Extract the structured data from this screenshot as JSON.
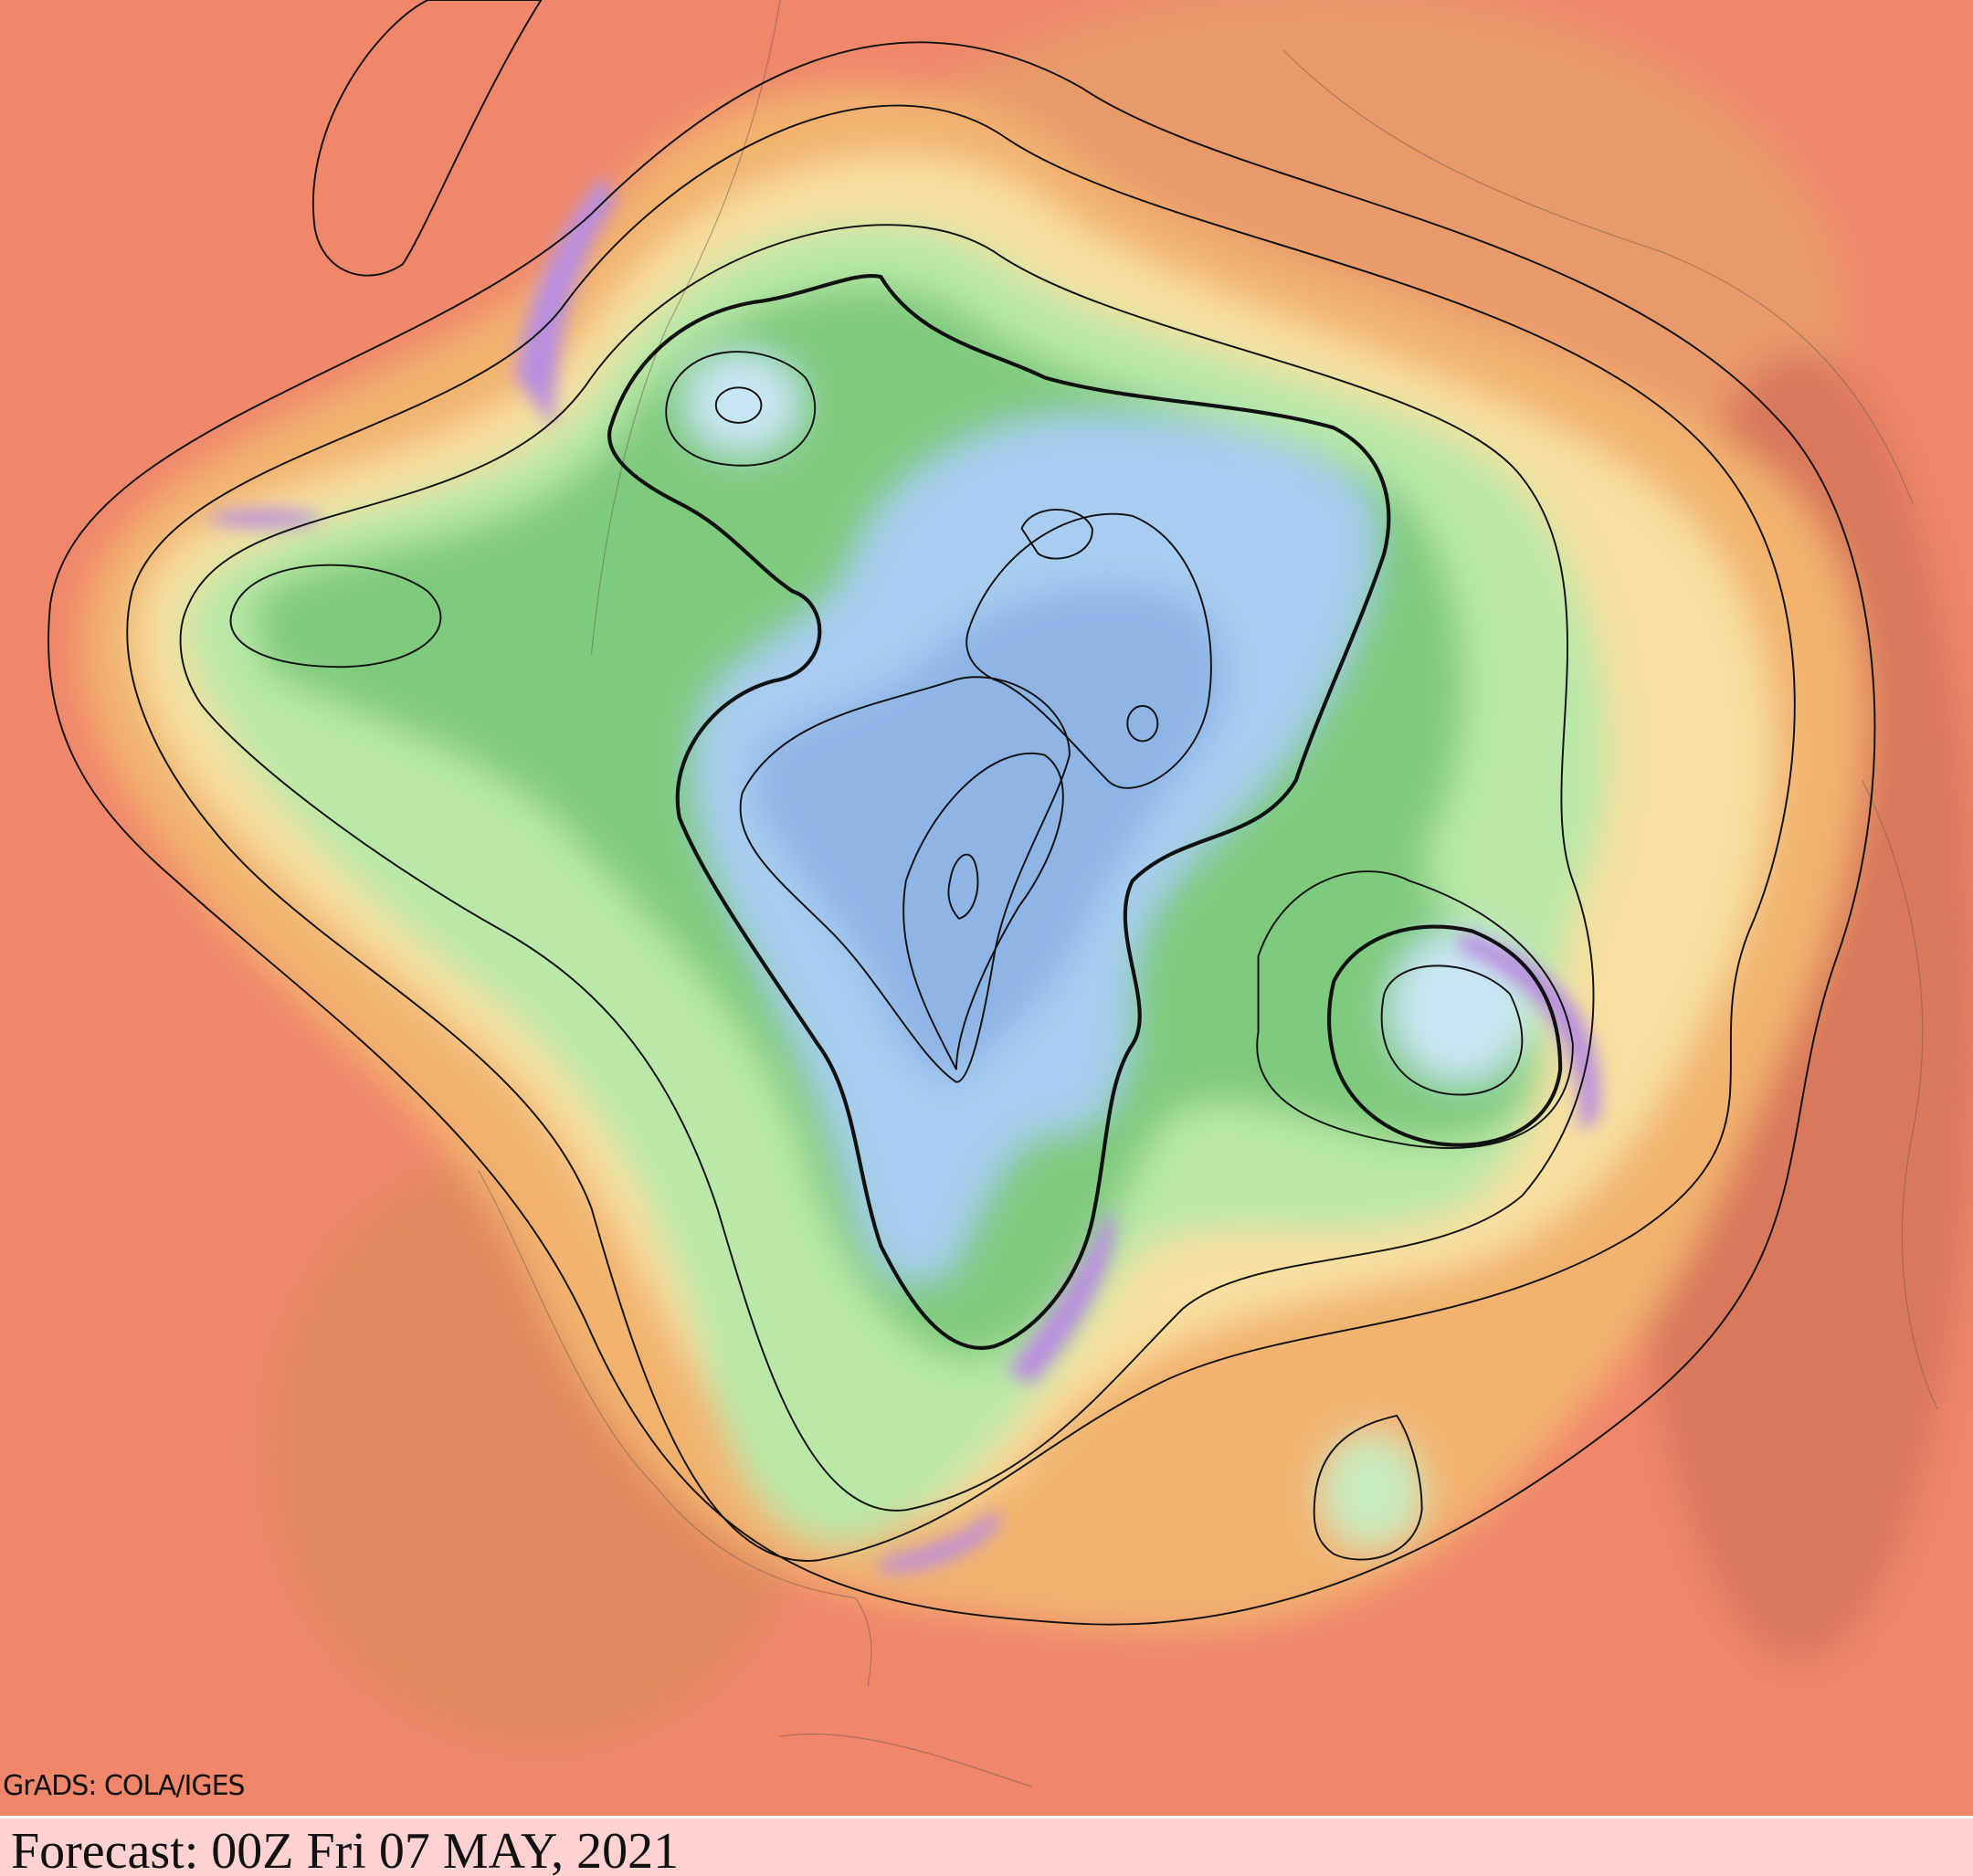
{
  "map": {
    "credit": "GrADS: COLA/IGES",
    "footer": "Forecast: 00Z Fri 07 MAY, 2021"
  }
}
